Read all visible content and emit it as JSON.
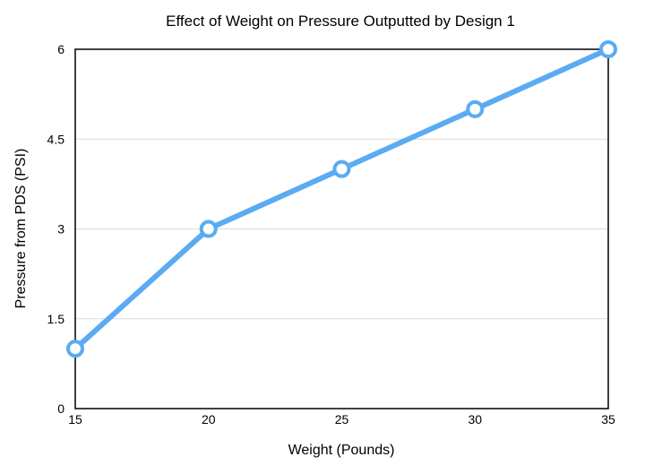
{
  "chart_data": {
    "type": "line",
    "title": "Effect of Weight on Pressure Outputted by Design 1",
    "xlabel": "Weight (Pounds)",
    "ylabel": "Pressure from PDS (PSI)",
    "x": [
      15,
      20,
      25,
      30,
      35
    ],
    "series": [
      {
        "values": [
          1,
          3,
          4,
          5,
          6
        ]
      }
    ],
    "xlim": [
      15,
      35
    ],
    "ylim": [
      0,
      6
    ],
    "xticks": [
      "15",
      "20",
      "25",
      "30",
      "35"
    ],
    "yticks": [
      "0",
      "1.5",
      "3",
      "4.5",
      "6"
    ],
    "grid": "horizontal",
    "line_color": "#5aabf2",
    "marker": "hollow-circle"
  }
}
